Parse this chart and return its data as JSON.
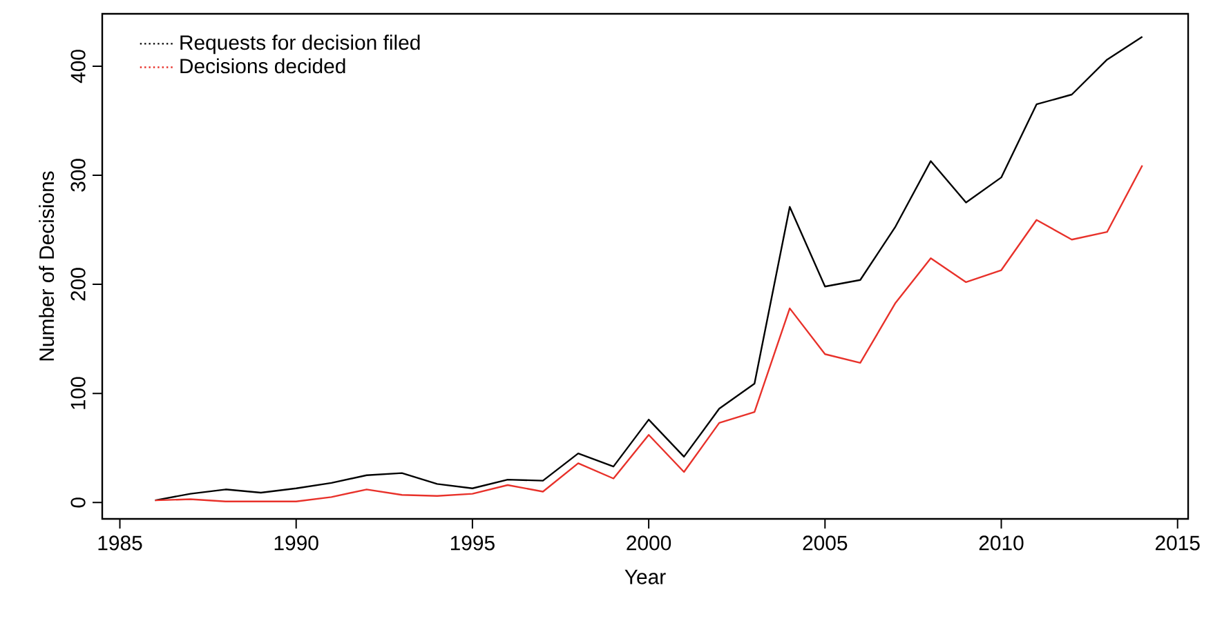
{
  "chart_data": {
    "type": "line",
    "xlabel": "Year",
    "ylabel": "Number of Decisions",
    "x": [
      1986,
      1987,
      1988,
      1989,
      1990,
      1991,
      1992,
      1993,
      1994,
      1995,
      1996,
      1997,
      1998,
      1999,
      2000,
      2001,
      2002,
      2003,
      2004,
      2005,
      2006,
      2007,
      2008,
      2009,
      2010,
      2011,
      2012,
      2013,
      2014
    ],
    "series": [
      {
        "name": "Requests for decision filed",
        "color": "#000000",
        "values": [
          2,
          8,
          12,
          9,
          13,
          18,
          25,
          27,
          17,
          13,
          21,
          20,
          45,
          33,
          76,
          42,
          86,
          109,
          271,
          198,
          204,
          253,
          313,
          275,
          298,
          365,
          374,
          406,
          427
        ]
      },
      {
        "name": "Decisions decided",
        "color": "#e8312a",
        "values": [
          2,
          3,
          1,
          1,
          1,
          5,
          12,
          7,
          6,
          8,
          16,
          10,
          36,
          22,
          62,
          28,
          73,
          83,
          178,
          136,
          128,
          183,
          224,
          202,
          213,
          259,
          241,
          248,
          309
        ]
      }
    ],
    "xlim": [
      1984.5,
      2015.3
    ],
    "ylim": [
      -15,
      448
    ],
    "xticks": [
      1985,
      1990,
      1995,
      2000,
      2005,
      2010,
      2015
    ],
    "yticks": [
      0,
      100,
      200,
      300,
      400
    ],
    "grid": false,
    "legend": "top left",
    "line_style": "solid",
    "marker": "none"
  }
}
